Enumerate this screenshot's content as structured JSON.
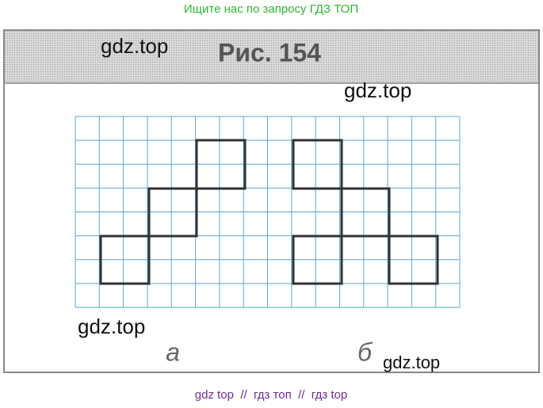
{
  "banner": "Ищите нас по запросу ГДЗ ТОП",
  "figure": {
    "title": "Рис. 154",
    "labels": [
      "а",
      "б"
    ]
  },
  "watermarks": [
    "gdz.top",
    "gdz.top",
    "gdz.top",
    "gdz.top"
  ],
  "footer": "gdz top  //  гдз топ  //  гдз top"
}
